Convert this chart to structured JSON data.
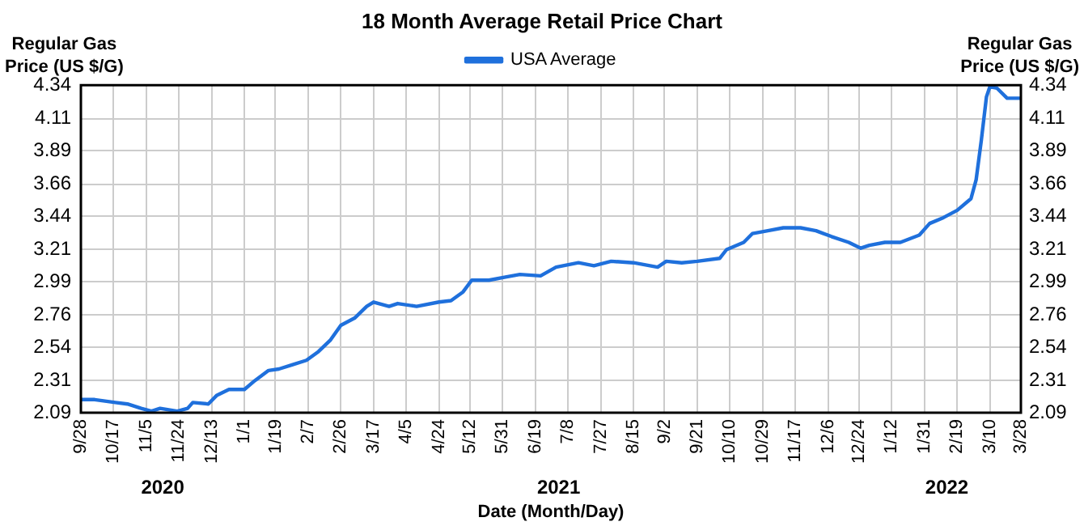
{
  "chart_data": {
    "type": "line",
    "title": "18 Month Average Retail Price Chart",
    "xlabel": "Date (Month/Day)",
    "ylabel": "Regular Gas\nPrice (US $/G)",
    "y2label": "Regular Gas\nPrice (US $/G)",
    "legend": "top",
    "grid": true,
    "marker": "none",
    "line_style": "solid",
    "xlim": [
      "2020-09-28",
      "2022-03-28"
    ],
    "xticks": [
      {
        "value": "2020-09-28",
        "label": "9/28"
      },
      {
        "value": "2020-10-17",
        "label": "10/17"
      },
      {
        "value": "2020-11-05",
        "label": "11/5"
      },
      {
        "value": "2020-11-24",
        "label": "11/24"
      },
      {
        "value": "2020-12-13",
        "label": "12/13"
      },
      {
        "value": "2021-01-01",
        "label": "1/1"
      },
      {
        "value": "2021-01-19",
        "label": "1/19"
      },
      {
        "value": "2021-02-07",
        "label": "2/7"
      },
      {
        "value": "2021-02-26",
        "label": "2/26"
      },
      {
        "value": "2021-03-17",
        "label": "3/17"
      },
      {
        "value": "2021-04-05",
        "label": "4/5"
      },
      {
        "value": "2021-04-24",
        "label": "4/24"
      },
      {
        "value": "2021-05-12",
        "label": "5/12"
      },
      {
        "value": "2021-05-31",
        "label": "5/31"
      },
      {
        "value": "2021-06-19",
        "label": "6/19"
      },
      {
        "value": "2021-07-08",
        "label": "7/8"
      },
      {
        "value": "2021-07-27",
        "label": "7/27"
      },
      {
        "value": "2021-08-15",
        "label": "8/15"
      },
      {
        "value": "2021-09-02",
        "label": "9/2"
      },
      {
        "value": "2021-09-21",
        "label": "9/21"
      },
      {
        "value": "2021-10-10",
        "label": "10/10"
      },
      {
        "value": "2021-10-29",
        "label": "10/29"
      },
      {
        "value": "2021-11-17",
        "label": "11/17"
      },
      {
        "value": "2021-12-06",
        "label": "12/6"
      },
      {
        "value": "2021-12-24",
        "label": "12/24"
      },
      {
        "value": "2022-01-12",
        "label": "1/12"
      },
      {
        "value": "2022-01-31",
        "label": "1/31"
      },
      {
        "value": "2022-02-19",
        "label": "2/19"
      },
      {
        "value": "2022-03-10",
        "label": "3/10"
      },
      {
        "value": "2022-03-28",
        "label": "3/28"
      }
    ],
    "ylim": [
      2.09,
      4.34
    ],
    "yticks": [
      2.09,
      2.31,
      2.54,
      2.76,
      2.99,
      3.21,
      3.44,
      3.66,
      3.89,
      4.11,
      4.34
    ],
    "y2lim": [
      2.09,
      4.34
    ],
    "y2ticks": [
      2.09,
      2.31,
      2.54,
      2.76,
      2.99,
      3.21,
      3.44,
      3.66,
      3.89,
      4.11,
      4.34
    ],
    "annotations": [
      "2020",
      "2021",
      "2022"
    ],
    "x": [
      "2020-09-28",
      "2020-10-06",
      "2020-10-18",
      "2020-10-25",
      "2020-11-02",
      "2020-11-08",
      "2020-11-13",
      "2020-11-23",
      "2020-11-29",
      "2020-12-02",
      "2020-12-11",
      "2020-12-16",
      "2020-12-23",
      "2021-01-01",
      "2021-01-07",
      "2021-01-15",
      "2021-01-21",
      "2021-01-29",
      "2021-02-06",
      "2021-02-13",
      "2021-02-20",
      "2021-02-26",
      "2021-03-06",
      "2021-03-13",
      "2021-03-17",
      "2021-03-26",
      "2021-03-31",
      "2021-04-11",
      "2021-04-24",
      "2021-05-01",
      "2021-05-08",
      "2021-05-13",
      "2021-05-23",
      "2021-06-01",
      "2021-06-10",
      "2021-06-22",
      "2021-07-01",
      "2021-07-14",
      "2021-07-23",
      "2021-08-02",
      "2021-08-15",
      "2021-08-29",
      "2021-09-03",
      "2021-09-12",
      "2021-09-21",
      "2021-10-04",
      "2021-10-08",
      "2021-10-18",
      "2021-10-23",
      "2021-11-01",
      "2021-11-10",
      "2021-11-20",
      "2021-11-29",
      "2021-12-08",
      "2021-12-18",
      "2021-12-25",
      "2021-12-30",
      "2022-01-08",
      "2022-01-17",
      "2022-01-28",
      "2022-02-03",
      "2022-02-11",
      "2022-02-19",
      "2022-02-27",
      "2022-03-02",
      "2022-03-05",
      "2022-03-08",
      "2022-03-10",
      "2022-03-14",
      "2022-03-20",
      "2022-03-28"
    ],
    "series": [
      {
        "name": "USA Average",
        "color": "#1f70dc",
        "values": [
          2.18,
          2.18,
          2.16,
          2.15,
          2.12,
          2.1,
          2.12,
          2.1,
          2.12,
          2.16,
          2.15,
          2.21,
          2.25,
          2.25,
          2.31,
          2.38,
          2.39,
          2.42,
          2.45,
          2.51,
          2.59,
          2.69,
          2.74,
          2.82,
          2.85,
          2.82,
          2.84,
          2.82,
          2.85,
          2.86,
          2.92,
          3.0,
          3.0,
          3.02,
          3.04,
          3.03,
          3.09,
          3.12,
          3.1,
          3.13,
          3.12,
          3.09,
          3.13,
          3.12,
          3.13,
          3.15,
          3.21,
          3.26,
          3.32,
          3.34,
          3.36,
          3.36,
          3.34,
          3.3,
          3.26,
          3.22,
          3.24,
          3.26,
          3.26,
          3.31,
          3.39,
          3.43,
          3.48,
          3.56,
          3.69,
          3.96,
          4.26,
          4.33,
          4.32,
          4.25,
          4.25
        ]
      }
    ]
  }
}
